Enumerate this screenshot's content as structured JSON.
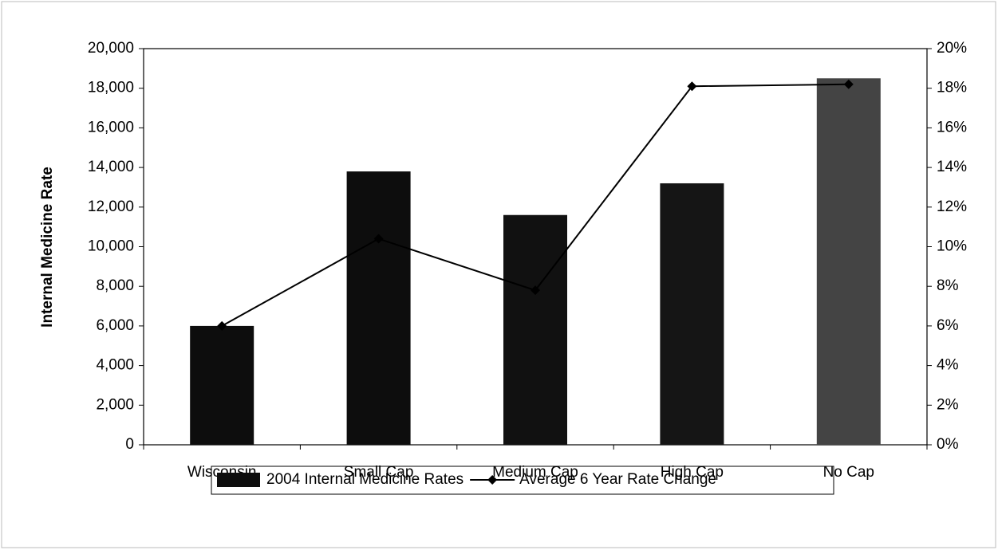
{
  "chart_data": {
    "type": "bar",
    "y_label": "Internal Medicine Rate",
    "categories": [
      "Wisconsin",
      "Small Cap",
      "Medium Cap",
      "High Cap",
      "No Cap"
    ],
    "series": [
      {
        "name": "2004 Internal Medicine Rates",
        "type": "bar",
        "color": "#0d0d0d",
        "colors": [
          "#0d0d0d",
          "#0d0d0d",
          "#111111",
          "#151515",
          "#444444"
        ],
        "values": [
          6000,
          13800,
          11600,
          13200,
          18500
        ]
      },
      {
        "name": "Average 6 Year Rate Change",
        "type": "line",
        "axis": "y2",
        "color": "#000000",
        "values": [
          6.0,
          10.4,
          7.8,
          18.1,
          18.2
        ]
      }
    ],
    "ylim": [
      0,
      20000
    ],
    "yticks": [
      0,
      {
        "value": 2000,
        "label": "2,000"
      },
      {
        "value": 4000,
        "label": "4,000"
      },
      {
        "value": 6000,
        "label": "6,000"
      },
      {
        "value": 8000,
        "label": "8,000"
      },
      {
        "value": 10000,
        "label": "10,000"
      },
      {
        "value": 12000,
        "label": "12,000"
      },
      {
        "value": 14000,
        "label": "14,000"
      },
      {
        "value": 16000,
        "label": "16,000"
      },
      {
        "value": 18000,
        "label": "18,000"
      },
      {
        "value": 20000,
        "label": "20,000"
      }
    ],
    "y2lim": [
      0,
      20
    ],
    "y2ticks": [
      {
        "value": 0,
        "label": "0%"
      },
      {
        "value": 2,
        "label": "2%"
      },
      {
        "value": 4,
        "label": "4%"
      },
      {
        "value": 6,
        "label": "6%"
      },
      {
        "value": 8,
        "label": "8%"
      },
      {
        "value": 10,
        "label": "10%"
      },
      {
        "value": 12,
        "label": "12%"
      },
      {
        "value": 14,
        "label": "14%"
      },
      {
        "value": 16,
        "label": "16%"
      },
      {
        "value": 18,
        "label": "18%"
      },
      {
        "value": 20,
        "label": "20%"
      }
    ],
    "grid": false
  }
}
